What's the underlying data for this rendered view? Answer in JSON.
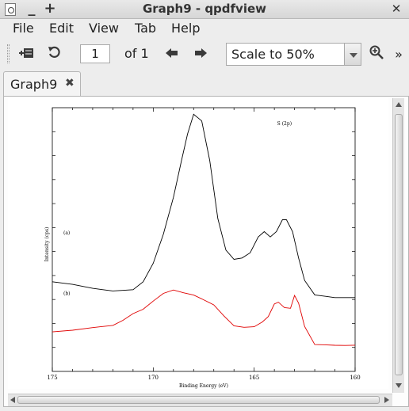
{
  "window": {
    "title": "Graph9 - qpdfview",
    "minimize_glyph": "_",
    "maximize_glyph": "+",
    "close_glyph": "✕"
  },
  "menu": {
    "items": [
      {
        "label": "File"
      },
      {
        "label": "Edit"
      },
      {
        "label": "View"
      },
      {
        "label": "Tab"
      },
      {
        "label": "Help"
      }
    ]
  },
  "toolbar": {
    "open_icon": "open-document-icon",
    "refresh_icon": "refresh-icon",
    "page_value": "1",
    "page_total_label": "of 1",
    "prev_icon": "arrow-left-icon",
    "next_icon": "arrow-right-icon",
    "scale_value": "Scale to 50%",
    "zoom_icon": "zoom-in-icon",
    "overflow_label": "»"
  },
  "tabs": [
    {
      "label": "Graph9",
      "close_glyph": "✖",
      "active": true
    }
  ],
  "chart_data": {
    "type": "line",
    "title": "S (2p)",
    "xlabel": "Binding Energy (eV)",
    "ylabel": "Intensity (cps)",
    "xlim": [
      175,
      160
    ],
    "x_reversed": true,
    "x_ticks": [
      "175",
      "170",
      "165",
      "160"
    ],
    "grid": false,
    "series_labels": [
      "(a)",
      "(b)"
    ],
    "series": [
      {
        "name": "(a)",
        "color": "#000000",
        "x": [
          175,
          174,
          173,
          172,
          171,
          170.5,
          170,
          169.5,
          169,
          168.6,
          168.3,
          168,
          167.6,
          167.2,
          166.8,
          166.4,
          166,
          165.6,
          165.2,
          164.8,
          164.5,
          164.2,
          163.9,
          163.6,
          163.4,
          163.1,
          162.8,
          162.5,
          162,
          161.5,
          161,
          160.5,
          160
        ],
        "y": [
          0.34,
          0.33,
          0.315,
          0.305,
          0.31,
          0.34,
          0.41,
          0.52,
          0.66,
          0.8,
          0.9,
          0.975,
          0.95,
          0.8,
          0.58,
          0.46,
          0.425,
          0.43,
          0.45,
          0.51,
          0.53,
          0.51,
          0.53,
          0.575,
          0.575,
          0.53,
          0.43,
          0.345,
          0.29,
          0.285,
          0.28,
          0.28,
          0.28
        ]
      },
      {
        "name": "(b)",
        "color": "#e00000",
        "x": [
          175,
          174,
          173,
          172,
          171.5,
          171,
          170.5,
          170,
          169.5,
          169,
          168.5,
          168,
          167.5,
          167,
          166.5,
          166,
          165.5,
          165,
          164.6,
          164.3,
          164,
          163.8,
          163.5,
          163.2,
          163,
          162.8,
          162.5,
          162,
          161.5,
          161,
          160.5,
          160
        ],
        "y": [
          0.15,
          0.16,
          0.17,
          0.175,
          0.19,
          0.215,
          0.235,
          0.27,
          0.3,
          0.31,
          0.295,
          0.285,
          0.27,
          0.255,
          0.215,
          0.175,
          0.165,
          0.165,
          0.185,
          0.21,
          0.26,
          0.265,
          0.24,
          0.235,
          0.285,
          0.26,
          0.175,
          0.105,
          0.1,
          0.095,
          0.095,
          0.1
        ]
      }
    ],
    "ylim": [
      0,
      1
    ]
  }
}
